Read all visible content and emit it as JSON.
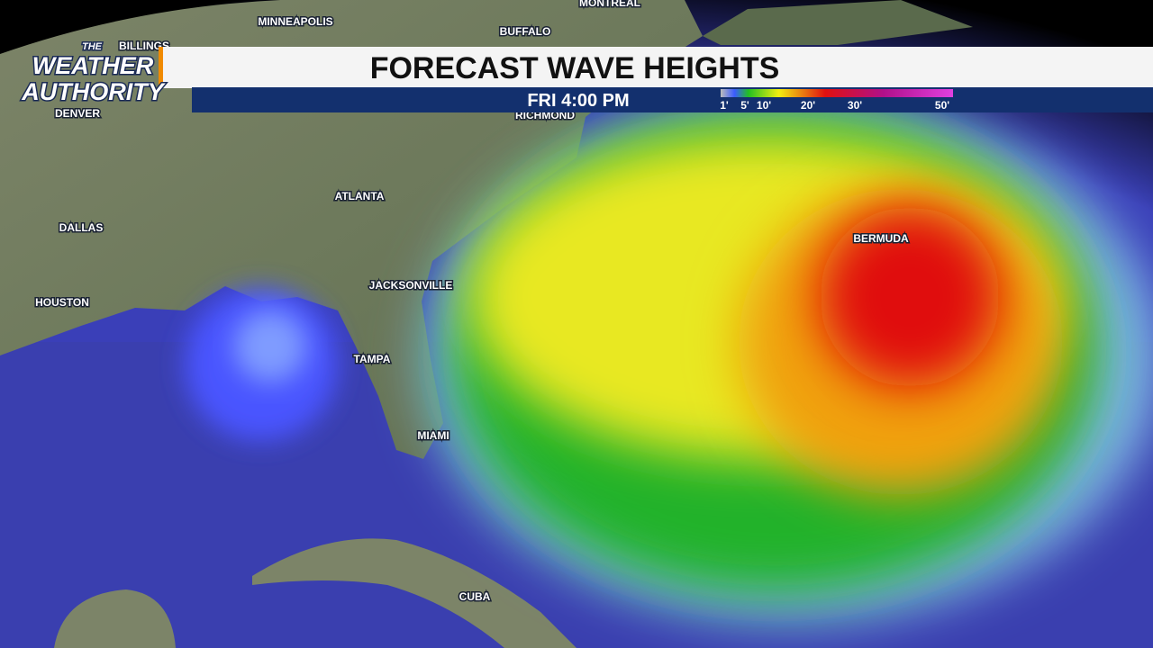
{
  "logo": {
    "top": "THE",
    "line1": "WEATHER",
    "line2": "AUTHORITY"
  },
  "header": {
    "title": "FORECAST WAVE HEIGHTS",
    "time": "FRI 4:00 PM"
  },
  "legend": {
    "labels": [
      "1'",
      "5'",
      "10'",
      "20'",
      "30'",
      "50'"
    ]
  },
  "cities": [
    "MINNEAPOLIS",
    "BUFFALO",
    "MONTREAL",
    "BILLINGS",
    "DENVER",
    "RICHMOND",
    "ATLANTA",
    "DALLAS",
    "JACKSONVILLE",
    "HOUSTON",
    "TAMPA",
    "MIAMI",
    "BERMUDA",
    "CUBA"
  ]
}
